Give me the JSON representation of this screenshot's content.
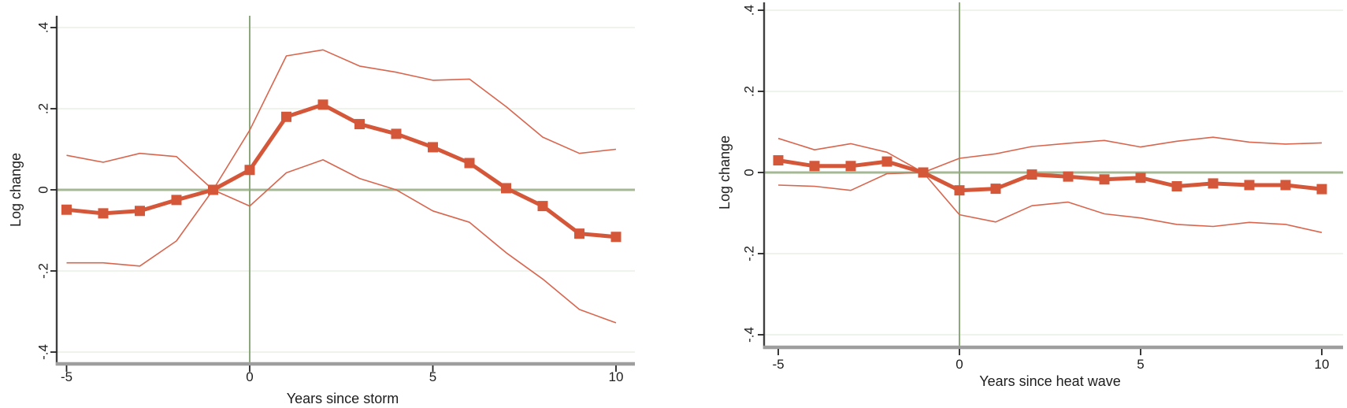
{
  "colors": {
    "estimate_line": "#d5573a",
    "ci_line": "#d8664e",
    "zero_line": "#a4b894",
    "event_time_line": "#8ea87e",
    "gridline": "#e9f0e6",
    "x_axis_line": "#9e9e9e",
    "y_axis_line": "#3f3f3f",
    "tick_mark": "#222222",
    "text": "#1d1d1d",
    "background": "#ffffff"
  },
  "chart_data": [
    {
      "type": "line",
      "title": "",
      "xlabel": "Years since storm",
      "ylabel": "Log change",
      "grid": true,
      "legend": "none",
      "xlim": [
        -5.9,
        10.55
      ],
      "ylim": [
        -0.44,
        0.44
      ],
      "reference_lines": {
        "horizontal_at": 0,
        "vertical_at": 0
      },
      "x": [
        -5,
        -4,
        -3,
        -2,
        -1,
        0,
        1,
        2,
        3,
        4,
        5,
        6,
        7,
        8,
        9,
        10
      ],
      "xticks": [
        {
          "label": "-5",
          "value": -5
        },
        {
          "label": "0",
          "value": 0
        },
        {
          "label": "5",
          "value": 5
        },
        {
          "label": "10",
          "value": 10
        }
      ],
      "yticks": [
        {
          "label": ".4",
          "value": 0.4
        },
        {
          "label": ".2",
          "value": 0.2
        },
        {
          "label": "0",
          "value": 0
        },
        {
          "label": "-.2",
          "value": -0.2
        },
        {
          "label": "-.4",
          "value": -0.4
        }
      ],
      "series": [
        {
          "name": "estimate",
          "style": "estimate",
          "marker": "square",
          "values": [
            -0.049,
            -0.058,
            -0.052,
            -0.025,
            0.0,
            0.049,
            0.18,
            0.21,
            0.162,
            0.138,
            0.105,
            0.066,
            0.004,
            -0.04,
            -0.108,
            -0.116
          ]
        },
        {
          "name": "ci-upper",
          "style": "ci",
          "values": [
            0.085,
            0.068,
            0.09,
            0.082,
            0.0,
            0.147,
            0.33,
            0.345,
            0.305,
            0.29,
            0.27,
            0.273,
            0.205,
            0.13,
            0.09,
            0.1
          ]
        },
        {
          "name": "ci-lower",
          "style": "ci",
          "values": [
            -0.18,
            -0.18,
            -0.188,
            -0.126,
            0.0,
            -0.04,
            0.042,
            0.074,
            0.028,
            0.0,
            -0.052,
            -0.08,
            -0.155,
            -0.22,
            -0.295,
            -0.328
          ]
        }
      ]
    },
    {
      "type": "line",
      "title": "",
      "xlabel": "Years since heat wave",
      "ylabel": "Log change",
      "grid": true,
      "legend": "none",
      "xlim": [
        -5.9,
        10.55
      ],
      "ylim": [
        -0.44,
        0.44
      ],
      "reference_lines": {
        "horizontal_at": 0,
        "vertical_at": 0
      },
      "x": [
        -5,
        -4,
        -3,
        -2,
        -1,
        0,
        1,
        2,
        3,
        4,
        5,
        6,
        7,
        8,
        9,
        10
      ],
      "xticks": [
        {
          "label": "-5",
          "value": -5
        },
        {
          "label": "0",
          "value": 0
        },
        {
          "label": "5",
          "value": 5
        },
        {
          "label": "10",
          "value": 10
        }
      ],
      "yticks": [
        {
          "label": ".4",
          "value": 0.4
        },
        {
          "label": ".2",
          "value": 0.2
        },
        {
          "label": "0",
          "value": 0
        },
        {
          "label": "-.2",
          "value": -0.2
        },
        {
          "label": "-.4",
          "value": -0.4
        }
      ],
      "series": [
        {
          "name": "estimate",
          "style": "estimate",
          "marker": "square",
          "values": [
            0.03,
            0.016,
            0.016,
            0.027,
            0.0,
            -0.044,
            -0.04,
            -0.005,
            -0.01,
            -0.017,
            -0.013,
            -0.034,
            -0.027,
            -0.031,
            -0.031,
            -0.041
          ]
        },
        {
          "name": "ci-upper",
          "style": "ci",
          "values": [
            0.084,
            0.056,
            0.071,
            0.05,
            0.0,
            0.035,
            0.046,
            0.064,
            0.072,
            0.079,
            0.063,
            0.077,
            0.087,
            0.075,
            0.07,
            0.073
          ]
        },
        {
          "name": "ci-lower",
          "style": "ci",
          "values": [
            -0.031,
            -0.034,
            -0.044,
            -0.003,
            0.0,
            -0.104,
            -0.122,
            -0.082,
            -0.073,
            -0.102,
            -0.112,
            -0.128,
            -0.133,
            -0.123,
            -0.128,
            -0.148
          ]
        }
      ]
    }
  ]
}
